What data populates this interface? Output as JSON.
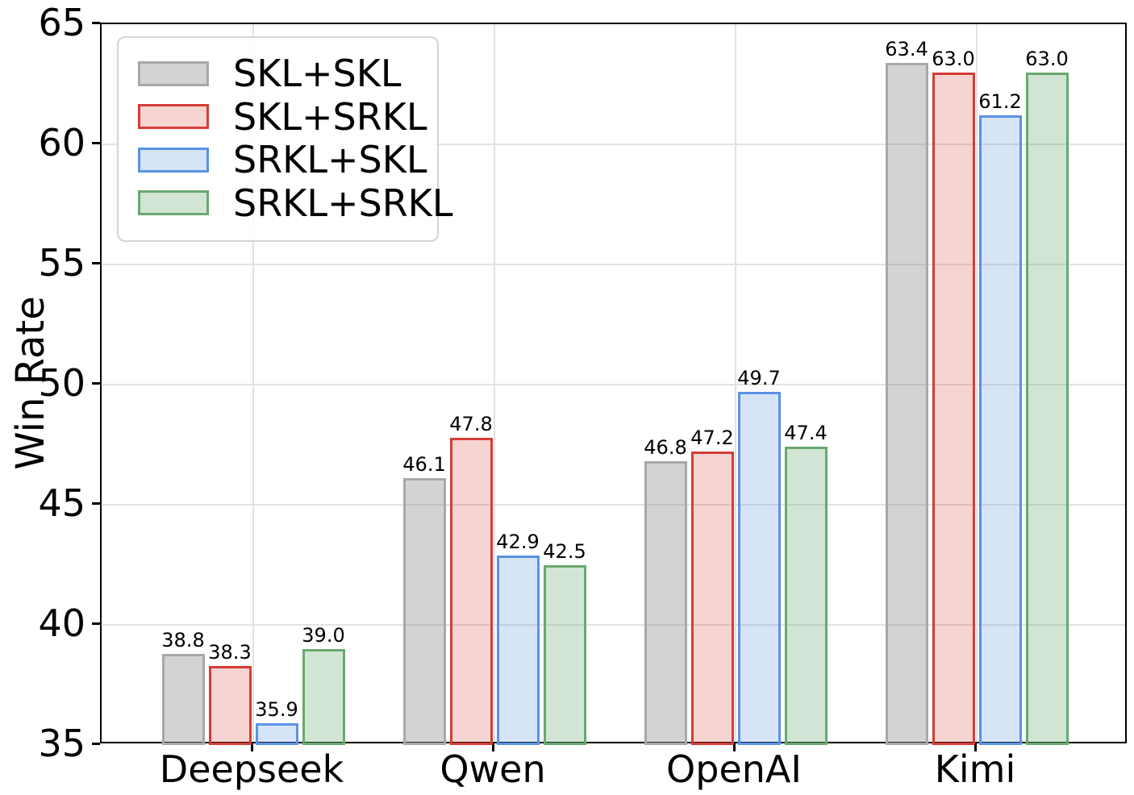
{
  "figure": {
    "background_color": "#ffffff",
    "text_color": "#000000",
    "spine_color": "#000000",
    "grid_color": "#e2e2e2",
    "legend_border_color": "#d4d4d4"
  },
  "chart_data": {
    "type": "bar",
    "title": "",
    "xlabel": "",
    "ylabel": "Win Rate",
    "ylim": [
      35,
      65
    ],
    "yticks": [
      35,
      40,
      45,
      50,
      55,
      60,
      65
    ],
    "grid": true,
    "legend_position": "upper-left",
    "value_labels_shown": true,
    "categories": [
      "Deepseek",
      "Qwen",
      "OpenAI",
      "Kimi"
    ],
    "series": [
      {
        "name": "SKL+SKL",
        "edge_color": "#a8a8a8",
        "fill_color": "rgba(128,128,128,0.35)",
        "values": [
          38.8,
          46.1,
          46.8,
          63.4
        ]
      },
      {
        "name": "SKL+SRKL",
        "edge_color": "#d43d35",
        "fill_color": "rgba(214,57,50,0.22)",
        "values": [
          38.3,
          47.8,
          47.2,
          63.0
        ]
      },
      {
        "name": "SRKL+SKL",
        "edge_color": "#5b92e5",
        "fill_color": "rgba(91,146,229,0.25)",
        "values": [
          35.9,
          42.9,
          49.7,
          61.2
        ]
      },
      {
        "name": "SRKL+SRKL",
        "edge_color": "#69a86f",
        "fill_color": "rgba(105,168,111,0.30)",
        "values": [
          39.0,
          42.5,
          47.4,
          63.0
        ]
      }
    ]
  }
}
